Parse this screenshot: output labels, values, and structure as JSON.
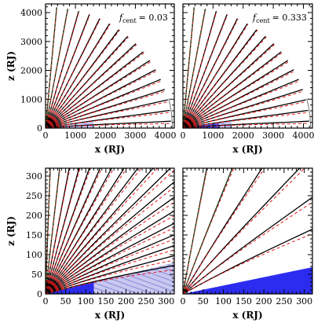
{
  "chart_data": [
    {
      "type": "line",
      "panel": "top-left",
      "annotation": "f_cent = 0.03",
      "annotation_parts": {
        "symbol": "f",
        "subscript": "cent",
        "value": "= 0.03"
      },
      "xlabel": "x (RJ)",
      "ylabel": "z (RJ)",
      "xlim": [
        0,
        4300
      ],
      "ylim": [
        0,
        4300
      ],
      "xticks": [
        "0",
        "1000",
        "2000",
        "3000",
        "4000"
      ],
      "yticks": [
        "0",
        "1000",
        "2000",
        "3000",
        "4000"
      ],
      "series_styles": {
        "solid": "#000000",
        "dashed": "#e41a1c",
        "dotted": "#2ca02c"
      },
      "field_line_angles_deg": [
        85,
        80,
        75,
        70,
        65,
        60,
        55,
        50,
        45,
        40,
        35,
        30,
        25,
        20,
        15,
        10,
        5
      ],
      "field_line_length": 4200,
      "shaded_region": {
        "x_end": 1600,
        "top_angle_deg": 8,
        "hatched_extent_x": [
          1200,
          1600
        ]
      }
    },
    {
      "type": "line",
      "panel": "top-right",
      "annotation": "f_cent = 0.333",
      "annotation_parts": {
        "symbol": "f",
        "subscript": "cent",
        "value": "= 0.333"
      },
      "xlabel": "x (RJ)",
      "ylabel": "",
      "xlim": [
        0,
        4300
      ],
      "ylim": [
        0,
        4300
      ],
      "xticks": [
        "0",
        "1000",
        "2000",
        "3000",
        "4000"
      ],
      "yticks": [],
      "series_styles": {
        "solid": "#000000",
        "dashed": "#e41a1c",
        "dotted": "#2ca02c"
      },
      "field_line_angles_deg": [
        85,
        80,
        75,
        70,
        65,
        60,
        55,
        50,
        45,
        40,
        35,
        30,
        25,
        20,
        15,
        10,
        5
      ],
      "field_line_length": 4200,
      "shaded_region": {
        "x_end": 1600,
        "top_angle_deg": 8,
        "hatched_extent_x": [
          1200,
          1600
        ]
      }
    },
    {
      "type": "line",
      "panel": "bottom-left",
      "xlabel": "x (RJ)",
      "ylabel": "z (RJ)",
      "xlim": [
        0,
        320
      ],
      "ylim": [
        0,
        320
      ],
      "xticks": [
        "0",
        "50",
        "100",
        "150",
        "200",
        "250",
        "300"
      ],
      "yticks": [
        "0",
        "50",
        "100",
        "150",
        "200",
        "250",
        "300"
      ],
      "series_styles": {
        "solid": "#000000",
        "dashed": "#e41a1c",
        "dotted": "#2ca02c"
      },
      "field_line_angles_deg": [
        88,
        84,
        80,
        76,
        72,
        68,
        64,
        60,
        56,
        52,
        48,
        44,
        40,
        36,
        32,
        28,
        24,
        20,
        16
      ],
      "shaded_region": {
        "x_solid_end": 120,
        "hatched_to": 320,
        "top_angle_deg": 14
      }
    },
    {
      "type": "line",
      "panel": "bottom-right",
      "xlabel": "x (RJ)",
      "ylabel": "",
      "xlim": [
        0,
        320
      ],
      "ylim": [
        0,
        320
      ],
      "xticks": [
        "0",
        "50",
        "100",
        "150",
        "200",
        "250",
        "300"
      ],
      "yticks": [],
      "series_styles": {
        "solid": "#000000",
        "dashed": "#e41a1c",
        "dotted": "#2ca02c"
      },
      "field_line_angles_deg": [
        80,
        70,
        60,
        50,
        40,
        30
      ],
      "shaded_region": {
        "x_solid_end": 320,
        "top_angle_deg": 12
      }
    }
  ]
}
